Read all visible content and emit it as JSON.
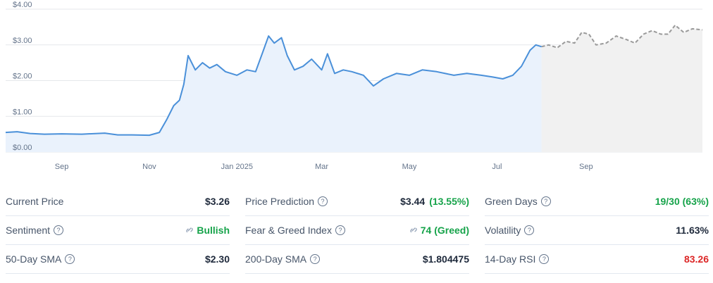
{
  "chart_data": {
    "type": "area",
    "ylim": [
      0,
      4
    ],
    "y_ticks": [
      "$0.00",
      "$1.00",
      "$2.00",
      "$3.00",
      "$4.00"
    ],
    "x_ticks": [
      "Sep",
      "Nov",
      "Jan 2025",
      "Mar",
      "May",
      "Jul",
      "Sep"
    ],
    "series": [
      {
        "values": [
          [
            "2024-07-24",
            0.55
          ],
          [
            "2024-08-01",
            0.57
          ],
          [
            "2024-08-10",
            0.52
          ],
          [
            "2024-08-20",
            0.5
          ],
          [
            "2024-09-01",
            0.51
          ],
          [
            "2024-09-15",
            0.5
          ],
          [
            "2024-10-01",
            0.53
          ],
          [
            "2024-10-10",
            0.48
          ],
          [
            "2024-10-20",
            0.48
          ],
          [
            "2024-11-01",
            0.47
          ],
          [
            "2024-11-08",
            0.55
          ],
          [
            "2024-11-13",
            0.9
          ],
          [
            "2024-11-18",
            1.3
          ],
          [
            "2024-11-22",
            1.45
          ],
          [
            "2024-11-25",
            1.9
          ],
          [
            "2024-11-28",
            2.7
          ],
          [
            "2024-12-03",
            2.3
          ],
          [
            "2024-12-08",
            2.5
          ],
          [
            "2024-12-13",
            2.35
          ],
          [
            "2024-12-18",
            2.45
          ],
          [
            "2024-12-24",
            2.25
          ],
          [
            "2025-01-01",
            2.15
          ],
          [
            "2025-01-08",
            2.3
          ],
          [
            "2025-01-14",
            2.25
          ],
          [
            "2025-01-19",
            2.8
          ],
          [
            "2025-01-23",
            3.25
          ],
          [
            "2025-01-27",
            3.05
          ],
          [
            "2025-02-01",
            3.2
          ],
          [
            "2025-02-05",
            2.7
          ],
          [
            "2025-02-10",
            2.3
          ],
          [
            "2025-02-16",
            2.4
          ],
          [
            "2025-02-22",
            2.6
          ],
          [
            "2025-03-01",
            2.3
          ],
          [
            "2025-03-05",
            2.75
          ],
          [
            "2025-03-10",
            2.2
          ],
          [
            "2025-03-16",
            2.3
          ],
          [
            "2025-03-22",
            2.25
          ],
          [
            "2025-03-30",
            2.15
          ],
          [
            "2025-04-06",
            1.85
          ],
          [
            "2025-04-13",
            2.05
          ],
          [
            "2025-04-22",
            2.2
          ],
          [
            "2025-05-01",
            2.15
          ],
          [
            "2025-05-10",
            2.3
          ],
          [
            "2025-05-20",
            2.25
          ],
          [
            "2025-06-01",
            2.15
          ],
          [
            "2025-06-10",
            2.2
          ],
          [
            "2025-06-20",
            2.15
          ],
          [
            "2025-06-28",
            2.1
          ],
          [
            "2025-07-05",
            2.05
          ],
          [
            "2025-07-12",
            2.15
          ],
          [
            "2025-07-18",
            2.4
          ],
          [
            "2025-07-24",
            2.85
          ],
          [
            "2025-07-28",
            3.0
          ],
          [
            "2025-08-01",
            2.95
          ]
        ]
      },
      {
        "style": "forecast",
        "values": [
          [
            "2025-08-01",
            2.95
          ],
          [
            "2025-08-06",
            3.0
          ],
          [
            "2025-08-12",
            2.92
          ],
          [
            "2025-08-18",
            3.1
          ],
          [
            "2025-08-24",
            3.05
          ],
          [
            "2025-08-29",
            3.35
          ],
          [
            "2025-09-03",
            3.3
          ],
          [
            "2025-09-08",
            3.0
          ],
          [
            "2025-09-15",
            3.05
          ],
          [
            "2025-09-22",
            3.25
          ],
          [
            "2025-09-29",
            3.15
          ],
          [
            "2025-10-05",
            3.05
          ],
          [
            "2025-10-11",
            3.3
          ],
          [
            "2025-10-17",
            3.4
          ],
          [
            "2025-10-23",
            3.3
          ],
          [
            "2025-10-28",
            3.3
          ],
          [
            "2025-11-02",
            3.55
          ],
          [
            "2025-11-08",
            3.35
          ],
          [
            "2025-11-14",
            3.45
          ],
          [
            "2025-11-21",
            3.42
          ]
        ]
      }
    ]
  },
  "stats": {
    "current_price": {
      "label": "Current Price",
      "value": "$3.26"
    },
    "sentiment": {
      "label": "Sentiment",
      "value": "Bullish"
    },
    "sma50": {
      "label": "50-Day SMA",
      "value": "$2.30"
    },
    "prediction": {
      "label": "Price Prediction",
      "value": "$3.44",
      "pct": "(13.55%)"
    },
    "fear_greed": {
      "label": "Fear & Greed Index",
      "value": "74 (Greed)"
    },
    "sma200": {
      "label": "200-Day SMA",
      "value": "$1.804475"
    },
    "green_days": {
      "label": "Green Days",
      "value": "19/30 (63%)"
    },
    "volatility": {
      "label": "Volatility",
      "value": "11.63%"
    },
    "rsi": {
      "label": "14-Day RSI",
      "value": "83.26"
    }
  },
  "colors": {
    "price_line": "#4a90d9",
    "price_fill": "#eaf2fc",
    "forecast_line": "#9a9a9a",
    "forecast_fill": "#f1f1f1",
    "green": "#16a34a",
    "red": "#dc2626"
  },
  "icons": {
    "help": "question-circle-icon",
    "link": "link-icon"
  }
}
